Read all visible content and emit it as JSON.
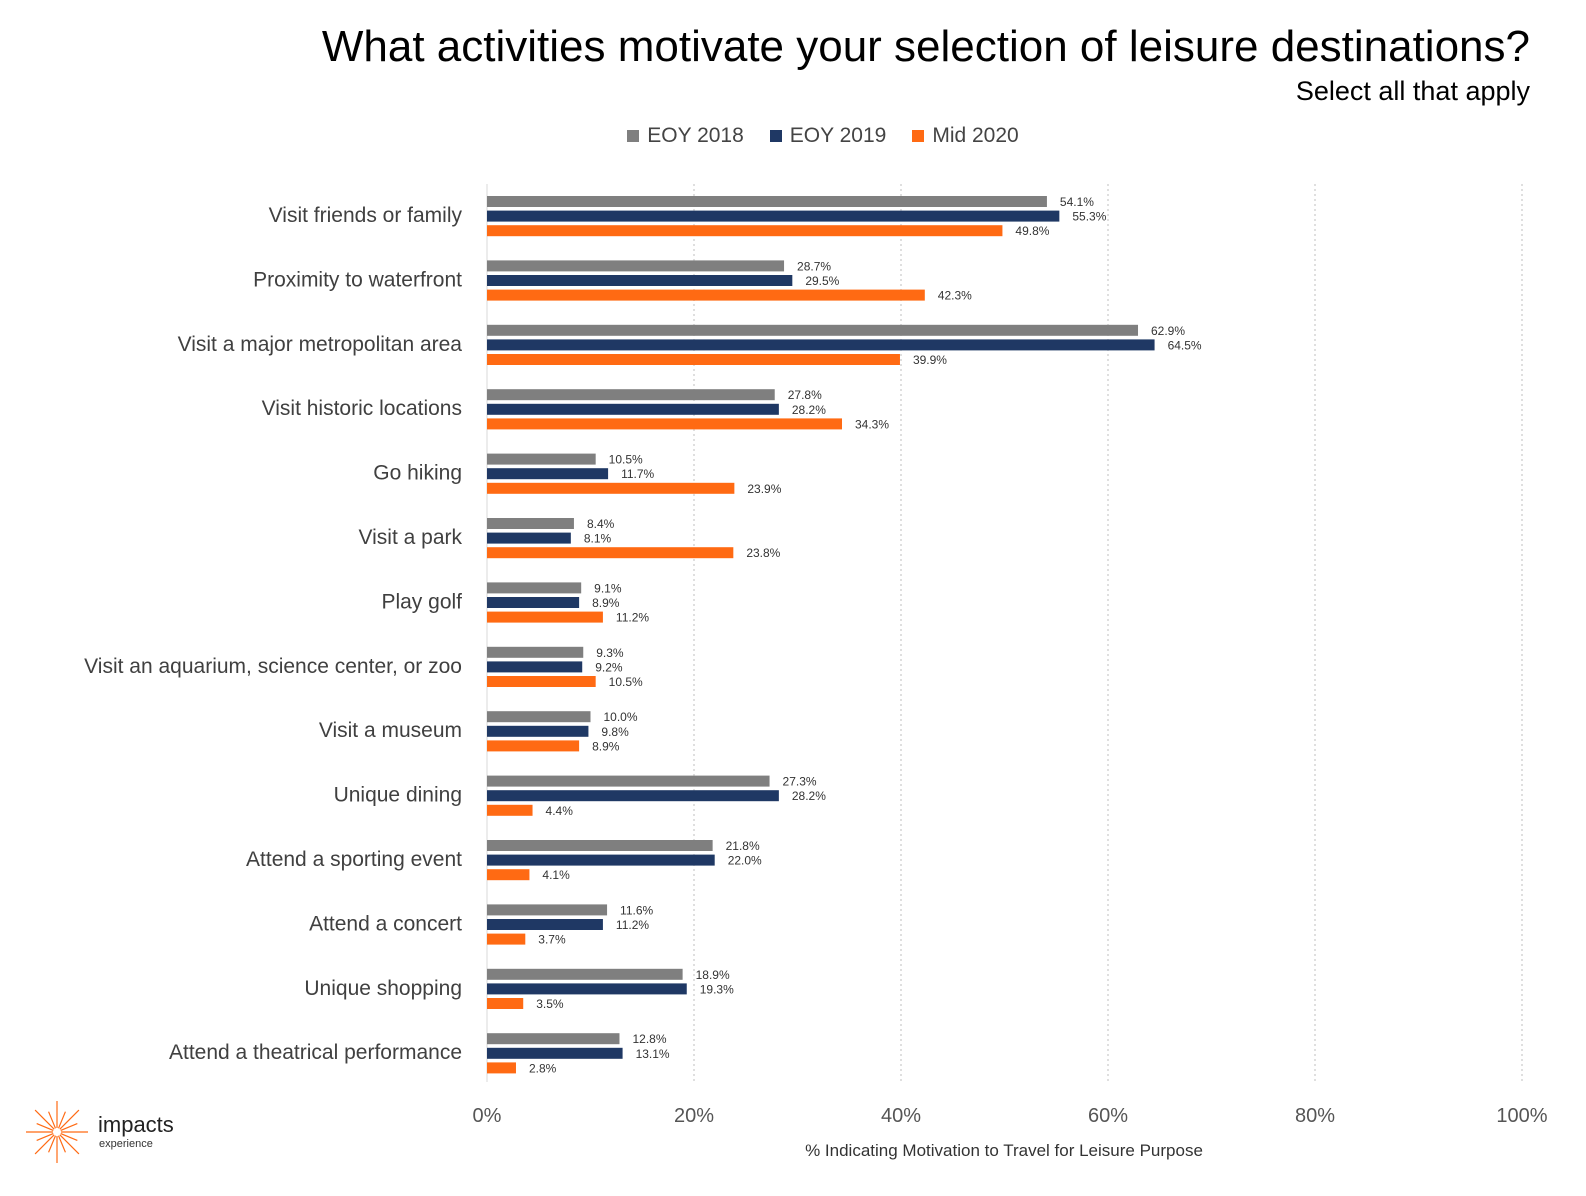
{
  "title": "What activities motivate your selection of leisure destinations?",
  "subtitle": "Select all that apply",
  "colors": {
    "eoy2018": "#7f7f7f",
    "eoy2019": "#1f3864",
    "mid2020": "#ff6a13",
    "grid": "#bfbfbf"
  },
  "logo": {
    "name": "impacts",
    "sub": "experience"
  },
  "chart_data": {
    "type": "bar",
    "orientation": "horizontal",
    "title": "What activities motivate your selection of leisure destinations?",
    "subtitle": "Select all that apply",
    "xlabel": "% Indicating Motivation to Travel for Leisure Purpose",
    "xlim": [
      0,
      100
    ],
    "xticks": [
      "0%",
      "20%",
      "40%",
      "60%",
      "80%",
      "100%"
    ],
    "legend_position": "top",
    "grid": "vertical dotted",
    "categories": [
      "Visit friends or family",
      "Proximity to waterfront",
      "Visit a major metropolitan area",
      "Visit historic locations",
      "Go hiking",
      "Visit a park",
      "Play golf",
      "Visit an aquarium, science center, or zoo",
      "Visit a museum",
      "Unique dining",
      "Attend a sporting event",
      "Attend a concert",
      "Unique shopping",
      "Attend a theatrical performance"
    ],
    "series": [
      {
        "name": "EOY 2018",
        "color": "#7f7f7f",
        "values": [
          54.1,
          28.7,
          62.9,
          27.8,
          10.5,
          8.4,
          9.1,
          9.3,
          10.0,
          27.3,
          21.8,
          11.6,
          18.9,
          12.8
        ]
      },
      {
        "name": "EOY 2019",
        "color": "#1f3864",
        "values": [
          55.3,
          29.5,
          64.5,
          28.2,
          11.7,
          8.1,
          8.9,
          9.2,
          9.8,
          28.2,
          22.0,
          11.2,
          19.3,
          13.1
        ]
      },
      {
        "name": "Mid 2020",
        "color": "#ff6a13",
        "values": [
          49.8,
          42.3,
          39.9,
          34.3,
          23.9,
          23.8,
          11.2,
          10.5,
          8.9,
          4.4,
          4.1,
          3.7,
          3.5,
          2.8
        ]
      }
    ]
  }
}
